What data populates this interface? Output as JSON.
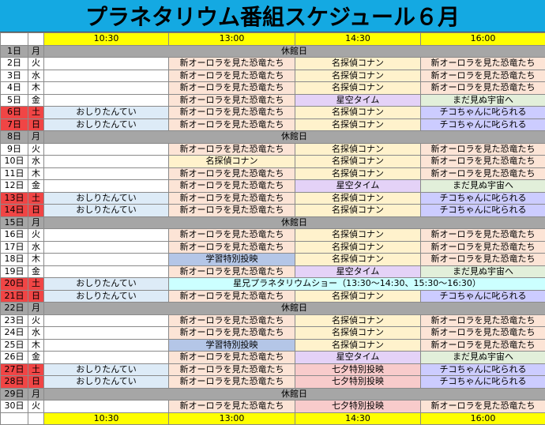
{
  "title": "プラネタリウム番組スケジュール６月",
  "times": [
    "10:30",
    "13:00",
    "14:30",
    "16:00"
  ],
  "closed_label": "休館日",
  "colors": {
    "title_bg": "#14a9e2",
    "time_header_bg": "#ffff00",
    "closed_bg": "#a6a6a6",
    "weekend_bg": "#f04545"
  },
  "programs": {
    "osiri": "おしりたんてい",
    "aurora": "新オーロラを見た恐竜たち",
    "conan": "名探偵コナン",
    "star": "星空タイム",
    "mada": "まだ見ぬ宇宙へ",
    "chiko": "チコちゃんに叱られる",
    "gaku": "学習特別投映",
    "tana": "七夕特別投映",
    "hoshi": "星兄プラネタリウムショー（13:30〜14:30、15:30〜16:30）"
  },
  "rows": [
    {
      "date": "1日",
      "wd": "月",
      "type": "closed"
    },
    {
      "date": "2日",
      "wd": "火",
      "slots": [
        "",
        "aurora",
        "conan",
        "aurora"
      ]
    },
    {
      "date": "3日",
      "wd": "水",
      "slots": [
        "",
        "aurora",
        "conan",
        "aurora"
      ]
    },
    {
      "date": "4日",
      "wd": "木",
      "slots": [
        "",
        "aurora",
        "conan",
        "aurora"
      ]
    },
    {
      "date": "5日",
      "wd": "金",
      "slots": [
        "",
        "aurora",
        "star",
        "mada"
      ]
    },
    {
      "date": "6日",
      "wd": "土",
      "weekend": true,
      "slots": [
        "osiri",
        "aurora",
        "conan",
        "chiko"
      ]
    },
    {
      "date": "7日",
      "wd": "日",
      "weekend": true,
      "slots": [
        "osiri",
        "aurora",
        "conan",
        "chiko"
      ]
    },
    {
      "date": "8日",
      "wd": "月",
      "type": "closed"
    },
    {
      "date": "9日",
      "wd": "火",
      "slots": [
        "",
        "aurora",
        "conan",
        "aurora"
      ]
    },
    {
      "date": "10日",
      "wd": "水",
      "slots": [
        "",
        "conan",
        "conan",
        "aurora"
      ]
    },
    {
      "date": "11日",
      "wd": "木",
      "slots": [
        "",
        "aurora",
        "conan",
        "aurora"
      ]
    },
    {
      "date": "12日",
      "wd": "金",
      "slots": [
        "",
        "aurora",
        "star",
        "mada"
      ]
    },
    {
      "date": "13日",
      "wd": "土",
      "weekend": true,
      "slots": [
        "osiri",
        "aurora",
        "conan",
        "chiko"
      ]
    },
    {
      "date": "14日",
      "wd": "日",
      "weekend": true,
      "slots": [
        "osiri",
        "aurora",
        "conan",
        "chiko"
      ]
    },
    {
      "date": "15日",
      "wd": "月",
      "type": "closed"
    },
    {
      "date": "16日",
      "wd": "火",
      "slots": [
        "",
        "aurora",
        "conan",
        "aurora"
      ]
    },
    {
      "date": "17日",
      "wd": "水",
      "slots": [
        "",
        "aurora",
        "conan",
        "aurora"
      ]
    },
    {
      "date": "18日",
      "wd": "木",
      "slots": [
        "",
        "gaku",
        "conan",
        "aurora"
      ]
    },
    {
      "date": "19日",
      "wd": "金",
      "slots": [
        "",
        "aurora",
        "star",
        "mada"
      ]
    },
    {
      "date": "20日",
      "wd": "土",
      "weekend": true,
      "slots": [
        "osiri",
        "hoshi"
      ],
      "span": 3
    },
    {
      "date": "21日",
      "wd": "日",
      "weekend": true,
      "slots": [
        "osiri",
        "aurora",
        "conan",
        "chiko"
      ]
    },
    {
      "date": "22日",
      "wd": "月",
      "type": "closed"
    },
    {
      "date": "23日",
      "wd": "火",
      "slots": [
        "",
        "aurora",
        "conan",
        "aurora"
      ]
    },
    {
      "date": "24日",
      "wd": "水",
      "slots": [
        "",
        "aurora",
        "conan",
        "aurora"
      ]
    },
    {
      "date": "25日",
      "wd": "木",
      "slots": [
        "",
        "gaku",
        "conan",
        "aurora"
      ]
    },
    {
      "date": "26日",
      "wd": "金",
      "slots": [
        "",
        "aurora",
        "star",
        "mada"
      ]
    },
    {
      "date": "27日",
      "wd": "土",
      "weekend": true,
      "slots": [
        "osiri",
        "aurora",
        "tana",
        "chiko"
      ]
    },
    {
      "date": "28日",
      "wd": "日",
      "weekend": true,
      "slots": [
        "osiri",
        "aurora",
        "tana",
        "chiko"
      ]
    },
    {
      "date": "29日",
      "wd": "月",
      "type": "closed"
    },
    {
      "date": "30日",
      "wd": "火",
      "slots": [
        "",
        "aurora",
        "tana",
        "aurora"
      ]
    }
  ]
}
